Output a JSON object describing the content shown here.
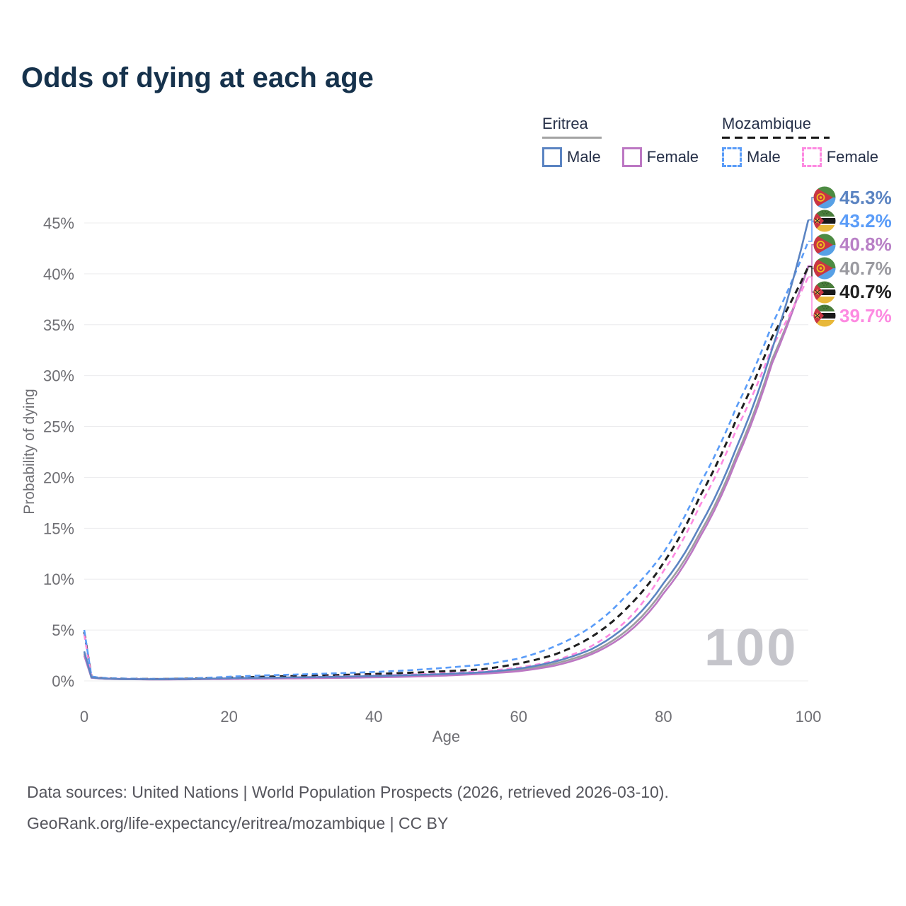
{
  "title": "Odds of dying at each age",
  "watermark_age": "100",
  "legend": {
    "groups": [
      {
        "name": "Eritrea",
        "line_style": "solid",
        "underline_color": "#a3a3a3",
        "items": [
          {
            "label": "Male",
            "color": "#5b84c2"
          },
          {
            "label": "Female",
            "color": "#bc77c3"
          }
        ]
      },
      {
        "name": "Mozambique",
        "line_style": "dashed",
        "underline_color": "#141414",
        "items": [
          {
            "label": "Male",
            "color": "#5a9cf8"
          },
          {
            "label": "Female",
            "color": "#fd8ae1"
          }
        ]
      }
    ]
  },
  "chart_data": {
    "type": "line",
    "title": "Odds of dying at each age",
    "xlabel": "Age",
    "ylabel": "Probability of dying",
    "xlim": [
      0,
      100
    ],
    "ylim": [
      0,
      47.5
    ],
    "xticks": [
      0,
      20,
      40,
      60,
      80,
      100
    ],
    "ytick_values": [
      0,
      5,
      10,
      15,
      20,
      25,
      30,
      35,
      40,
      45
    ],
    "ytick_labels": [
      "0%",
      "5%",
      "10%",
      "15%",
      "20%",
      "25%",
      "30%",
      "35%",
      "40%",
      "45%"
    ],
    "grid": "horizontal",
    "legend_position": "top-right",
    "x": [
      0,
      1,
      2,
      3,
      5,
      10,
      15,
      20,
      25,
      30,
      35,
      40,
      45,
      50,
      55,
      60,
      65,
      70,
      75,
      80,
      85,
      90,
      95,
      100
    ],
    "series": [
      {
        "name": "Eritrea Male",
        "country": "Eritrea",
        "sex": "Male",
        "color": "#5b84c2",
        "dash": "solid",
        "width": 2.6,
        "values": [
          2.9,
          0.35,
          0.27,
          0.23,
          0.19,
          0.16,
          0.19,
          0.26,
          0.31,
          0.36,
          0.41,
          0.48,
          0.57,
          0.69,
          0.85,
          1.2,
          1.9,
          3.1,
          5.5,
          9.6,
          15.2,
          22.8,
          32.6,
          45.3
        ]
      },
      {
        "name": "Eritrea Female",
        "country": "Eritrea",
        "sex": "Female",
        "color": "#bc77c3",
        "dash": "solid",
        "width": 2.6,
        "values": [
          2.5,
          0.31,
          0.24,
          0.2,
          0.17,
          0.14,
          0.16,
          0.19,
          0.22,
          0.26,
          0.3,
          0.35,
          0.42,
          0.53,
          0.7,
          0.95,
          1.5,
          2.6,
          4.7,
          8.6,
          14.1,
          21.6,
          31.2,
          40.8
        ]
      },
      {
        "name": "Eritrea Both sexes",
        "country": "Eritrea",
        "sex": "Both",
        "color": "#9d9da1",
        "dash": "solid",
        "width": 2.6,
        "values": [
          2.7,
          0.33,
          0.25,
          0.21,
          0.18,
          0.15,
          0.17,
          0.22,
          0.26,
          0.3,
          0.35,
          0.41,
          0.49,
          0.6,
          0.75,
          1.05,
          1.7,
          2.8,
          5.0,
          9.0,
          14.5,
          22.0,
          31.6,
          40.7
        ]
      },
      {
        "name": "Mozambique Male",
        "country": "Mozambique",
        "sex": "Male",
        "color": "#5a9cf8",
        "dash": "dashed",
        "width": 2.6,
        "values": [
          5.0,
          0.45,
          0.33,
          0.28,
          0.23,
          0.2,
          0.26,
          0.42,
          0.55,
          0.65,
          0.75,
          0.88,
          1.05,
          1.3,
          1.6,
          2.2,
          3.4,
          5.3,
          8.5,
          12.6,
          19.3,
          26.8,
          35.0,
          43.2
        ]
      },
      {
        "name": "Mozambique Female",
        "country": "Mozambique",
        "sex": "Female",
        "color": "#fd8ae1",
        "dash": "dashed",
        "width": 2.6,
        "values": [
          4.6,
          0.41,
          0.3,
          0.25,
          0.21,
          0.17,
          0.19,
          0.24,
          0.3,
          0.37,
          0.44,
          0.52,
          0.62,
          0.76,
          0.95,
          1.3,
          2.0,
          3.4,
          6.0,
          10.8,
          17.2,
          24.6,
          32.8,
          39.7
        ]
      },
      {
        "name": "Mozambique Both sexes",
        "country": "Mozambique",
        "sex": "Both",
        "color": "#1f1f1f",
        "dash": "dashed",
        "width": 3,
        "values": [
          4.8,
          0.43,
          0.31,
          0.26,
          0.22,
          0.18,
          0.22,
          0.32,
          0.42,
          0.5,
          0.58,
          0.68,
          0.8,
          0.95,
          1.15,
          1.7,
          2.6,
          4.3,
          7.2,
          11.6,
          18.1,
          25.6,
          33.8,
          40.7
        ]
      }
    ],
    "end_labels": [
      {
        "series_index": 0,
        "series": "Eritrea Male",
        "flag": "eritrea",
        "text": "45.3%",
        "color": "#5b84c2"
      },
      {
        "series_index": 3,
        "series": "Mozambique Male",
        "flag": "mozambique",
        "text": "43.2%",
        "color": "#5a9cf8"
      },
      {
        "series_index": 1,
        "series": "Eritrea Female",
        "flag": "eritrea",
        "text": "40.8%",
        "color": "#b87fc6"
      },
      {
        "series_index": 2,
        "series": "Eritrea Both sexes",
        "flag": "eritrea",
        "text": "40.7%",
        "color": "#9a9aa0"
      },
      {
        "series_index": 5,
        "series": "Mozambique Both sexes",
        "flag": "mozambique",
        "text": "40.7%",
        "color": "#1f1f1f"
      },
      {
        "series_index": 4,
        "series": "Mozambique Female",
        "flag": "mozambique",
        "text": "39.7%",
        "color": "#fd8ae1"
      }
    ]
  },
  "footer": {
    "line1": "Data sources: United Nations | World Population Prospects (2026, retrieved 2026-03-10).",
    "line2": "GeoRank.org/life-expectancy/eritrea/mozambique | CC BY"
  }
}
